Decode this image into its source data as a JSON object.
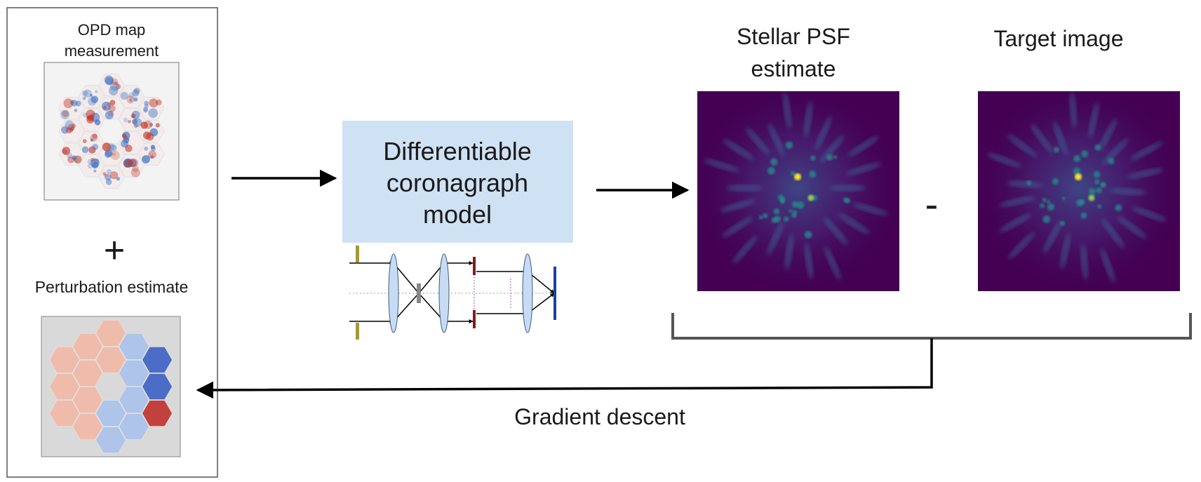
{
  "left_panel": {
    "opd_title_line1": "OPD map",
    "opd_title_line2": "measurement",
    "plus_symbol": "+",
    "perturbation_title": "Perturbation estimate"
  },
  "model_box": {
    "line1": "Differentiable",
    "line2": "coronagraph",
    "line3": "model",
    "fill_color": "#cfe2f3"
  },
  "stellar_psf": {
    "title_line1": "Stellar PSF",
    "title_line2": "estimate"
  },
  "minus_symbol": "-",
  "target_image": {
    "title": "Target image"
  },
  "feedback": {
    "label": "Gradient descent"
  },
  "colors": {
    "psf_background": "#440154",
    "psf_peak": "#fde725",
    "psf_mid": "#21918c",
    "opd_blue": "#3b6fc4",
    "opd_red": "#c0392b",
    "stop_olive": "#a89a2a",
    "stop_dark_red": "#7a2020",
    "detector_blue": "#1f3f9a",
    "lens_fill": "#c7dcf2"
  }
}
